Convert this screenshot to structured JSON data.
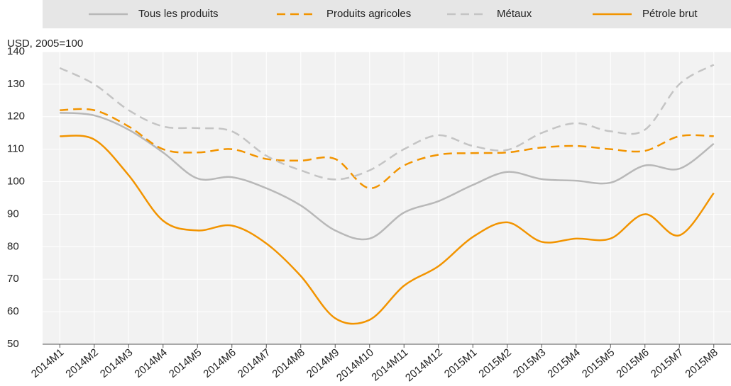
{
  "chart_data": {
    "type": "line",
    "y_label": "USD, 2005=100",
    "categories": [
      "2014M1",
      "2014M2",
      "2014M3",
      "2014M4",
      "2014M5",
      "2014M6",
      "2014M7",
      "2014M8",
      "2014M9",
      "2014M10",
      "2014M11",
      "2014M12",
      "2015M1",
      "2015M2",
      "2015M3",
      "2015M4",
      "2015M5",
      "2015M6",
      "2015M7",
      "2015M8"
    ],
    "series": [
      {
        "name": "Tous les produits",
        "color": "#b8b8b8",
        "dash": false,
        "values": [
          121.2,
          120.4,
          116,
          109,
          101,
          101.4,
          98,
          92.7,
          85,
          82.5,
          90.5,
          94,
          99,
          103,
          100.8,
          100.3,
          99.7,
          105,
          104,
          111.7
        ]
      },
      {
        "name": "Produits agricoles",
        "color": "#f29400",
        "dash": true,
        "values": [
          122,
          122,
          117,
          110,
          109,
          110,
          107,
          106.5,
          107,
          98,
          105,
          108.3,
          108.8,
          109,
          110.5,
          111,
          110,
          109.5,
          114,
          114
        ]
      },
      {
        "name": "Métaux",
        "color": "#c4c4c4",
        "dash": true,
        "values": [
          135,
          130,
          122,
          117,
          116.5,
          115.5,
          108,
          103.5,
          100.7,
          103.5,
          110,
          114.3,
          111,
          109.8,
          115,
          118,
          115.5,
          116,
          130,
          136
        ]
      },
      {
        "name": "Pétrole brut",
        "color": "#f29400",
        "dash": false,
        "values": [
          114,
          113,
          102,
          88,
          85,
          86.5,
          81,
          71,
          58,
          57.5,
          68,
          74,
          83,
          87.5,
          81.5,
          82.5,
          82.5,
          90,
          83.5,
          96.5
        ]
      }
    ],
    "ylim": [
      50,
      140
    ],
    "yticks": [
      50,
      60,
      70,
      80,
      90,
      100,
      110,
      120,
      130,
      140
    ],
    "grid": true,
    "legend": "top"
  }
}
